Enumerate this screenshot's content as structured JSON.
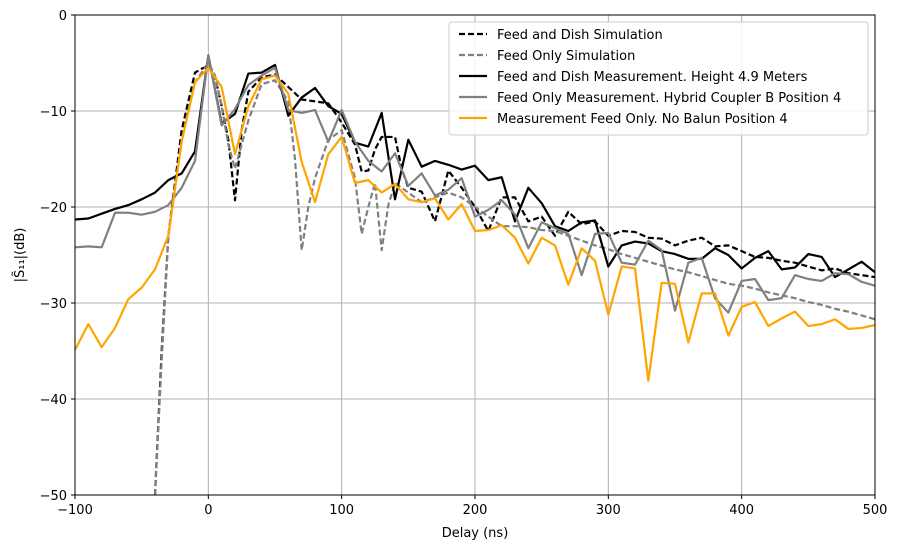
{
  "chart_data": {
    "type": "line",
    "xlabel": "Delay (ns)",
    "ylabel": "|S̃₁₁|(dB)",
    "xlim": [
      -100,
      500
    ],
    "ylim": [
      -50,
      0
    ],
    "xticks": [
      -100,
      0,
      100,
      200,
      300,
      400,
      500
    ],
    "xtick_labels": [
      "−100",
      "0",
      "100",
      "200",
      "300",
      "400",
      "500"
    ],
    "yticks": [
      0,
      -10,
      -20,
      -30,
      -40,
      -50
    ],
    "ytick_labels": [
      "0",
      "−10",
      "−20",
      "−30",
      "−40",
      "−50"
    ],
    "grid": true,
    "legend_position": "top-right",
    "series": [
      {
        "name": "Feed and Dish Simulation",
        "color": "#000000",
        "dash": "dashed",
        "points": [
          [
            -40,
            -50
          ],
          [
            -35,
            -35
          ],
          [
            -30,
            -23
          ],
          [
            -20,
            -12
          ],
          [
            -10,
            -6
          ],
          [
            -5,
            -5.6
          ],
          [
            0,
            -5.3
          ],
          [
            5,
            -6.4
          ],
          [
            10,
            -9.5
          ],
          [
            15,
            -13
          ],
          [
            20,
            -19.3
          ],
          [
            25,
            -12
          ],
          [
            30,
            -8
          ],
          [
            40,
            -6.5
          ],
          [
            50,
            -6.2
          ],
          [
            60,
            -7.5
          ],
          [
            70,
            -8.8
          ],
          [
            80,
            -9
          ],
          [
            90,
            -9.2
          ],
          [
            100,
            -11.2
          ],
          [
            110,
            -13.5
          ],
          [
            115,
            -16.3
          ],
          [
            120,
            -16.2
          ],
          [
            125,
            -14
          ],
          [
            130,
            -12.7
          ],
          [
            140,
            -12.7
          ],
          [
            145,
            -16
          ],
          [
            150,
            -18
          ],
          [
            160,
            -18.4
          ],
          [
            170,
            -21.5
          ],
          [
            180,
            -16.2
          ],
          [
            190,
            -18
          ],
          [
            200,
            -20
          ],
          [
            210,
            -22.5
          ],
          [
            220,
            -19
          ],
          [
            230,
            -19
          ],
          [
            240,
            -21.5
          ],
          [
            250,
            -21
          ],
          [
            260,
            -23
          ],
          [
            270,
            -20.5
          ],
          [
            280,
            -21.8
          ],
          [
            290,
            -21.5
          ],
          [
            300,
            -23
          ],
          [
            310,
            -22.5
          ],
          [
            320,
            -22.6
          ],
          [
            330,
            -23.2
          ],
          [
            340,
            -23.3
          ],
          [
            350,
            -24
          ],
          [
            360,
            -23.5
          ],
          [
            370,
            -23.2
          ],
          [
            380,
            -24.1
          ],
          [
            390,
            -24
          ],
          [
            400,
            -24.6
          ],
          [
            410,
            -25.2
          ],
          [
            420,
            -25.3
          ],
          [
            430,
            -25.6
          ],
          [
            440,
            -25.8
          ],
          [
            450,
            -26.2
          ],
          [
            460,
            -26.6
          ],
          [
            470,
            -26.4
          ],
          [
            480,
            -26.9
          ],
          [
            490,
            -27.1
          ],
          [
            500,
            -27.3
          ]
        ]
      },
      {
        "name": "Feed Only Simulation",
        "color": "#808080",
        "dash": "dashed",
        "points": [
          [
            -40,
            -50
          ],
          [
            -35,
            -36
          ],
          [
            -30,
            -23
          ],
          [
            -20,
            -13
          ],
          [
            -10,
            -7
          ],
          [
            -5,
            -6
          ],
          [
            0,
            -5
          ],
          [
            5,
            -6.3
          ],
          [
            10,
            -9.5
          ],
          [
            15,
            -13.5
          ],
          [
            20,
            -16
          ],
          [
            30,
            -11
          ],
          [
            40,
            -7.2
          ],
          [
            50,
            -6.8
          ],
          [
            60,
            -9
          ],
          [
            65,
            -15
          ],
          [
            70,
            -24.5
          ],
          [
            75,
            -20
          ],
          [
            80,
            -17
          ],
          [
            90,
            -13
          ],
          [
            100,
            -12
          ],
          [
            110,
            -17
          ],
          [
            115,
            -22.8
          ],
          [
            120,
            -20
          ],
          [
            125,
            -17.5
          ],
          [
            130,
            -24.5
          ],
          [
            135,
            -19.8
          ],
          [
            140,
            -17.5
          ],
          [
            150,
            -18.5
          ],
          [
            160,
            -19.5
          ],
          [
            170,
            -19
          ],
          [
            180,
            -18.5
          ],
          [
            190,
            -19
          ],
          [
            200,
            -20
          ],
          [
            210,
            -21
          ],
          [
            220,
            -22
          ],
          [
            230,
            -22
          ],
          [
            240,
            -22.1
          ],
          [
            250,
            -22.4
          ],
          [
            260,
            -22.5
          ],
          [
            270,
            -23
          ],
          [
            280,
            -23.5
          ],
          [
            290,
            -24
          ],
          [
            300,
            -24.4
          ],
          [
            310,
            -24.9
          ],
          [
            320,
            -25.3
          ],
          [
            330,
            -25.7
          ],
          [
            340,
            -26.1
          ],
          [
            350,
            -26.5
          ],
          [
            360,
            -26.8
          ],
          [
            370,
            -27.2
          ],
          [
            380,
            -27.6
          ],
          [
            390,
            -28
          ],
          [
            400,
            -28.2
          ],
          [
            410,
            -28.5
          ],
          [
            420,
            -28.9
          ],
          [
            430,
            -29.2
          ],
          [
            440,
            -29.5
          ],
          [
            450,
            -29.9
          ],
          [
            460,
            -30.2
          ],
          [
            470,
            -30.6
          ],
          [
            480,
            -30.9
          ],
          [
            490,
            -31.3
          ],
          [
            500,
            -31.7
          ]
        ]
      },
      {
        "name": "Feed and Dish Measurement. Height 4.9 Meters",
        "color": "#000000",
        "dash": "solid",
        "points": [
          [
            -100,
            -21.3
          ],
          [
            -90,
            -21.2
          ],
          [
            -80,
            -20.7
          ],
          [
            -70,
            -20.2
          ],
          [
            -60,
            -19.8
          ],
          [
            -50,
            -19.2
          ],
          [
            -40,
            -18.5
          ],
          [
            -30,
            -17.2
          ],
          [
            -20,
            -16.5
          ],
          [
            -10,
            -14.2
          ],
          [
            0,
            -4.2
          ],
          [
            10,
            -11.3
          ],
          [
            20,
            -10.3
          ],
          [
            30,
            -6.1
          ],
          [
            40,
            -6
          ],
          [
            50,
            -5.2
          ],
          [
            60,
            -10.5
          ],
          [
            70,
            -8.6
          ],
          [
            80,
            -7.6
          ],
          [
            90,
            -9.5
          ],
          [
            100,
            -10.3
          ],
          [
            110,
            -13.3
          ],
          [
            120,
            -13.7
          ],
          [
            130,
            -10.2
          ],
          [
            140,
            -19.2
          ],
          [
            150,
            -13
          ],
          [
            160,
            -15.8
          ],
          [
            170,
            -15.2
          ],
          [
            180,
            -15.6
          ],
          [
            190,
            -16.1
          ],
          [
            200,
            -15.7
          ],
          [
            210,
            -17.2
          ],
          [
            220,
            -16.9
          ],
          [
            230,
            -21.5
          ],
          [
            240,
            -18
          ],
          [
            250,
            -19.6
          ],
          [
            260,
            -22
          ],
          [
            270,
            -22.5
          ],
          [
            280,
            -21.6
          ],
          [
            290,
            -21.4
          ],
          [
            300,
            -26.2
          ],
          [
            310,
            -24
          ],
          [
            320,
            -23.6
          ],
          [
            330,
            -23.8
          ],
          [
            340,
            -24.6
          ],
          [
            350,
            -24.9
          ],
          [
            360,
            -25.4
          ],
          [
            370,
            -25.4
          ],
          [
            380,
            -24.3
          ],
          [
            390,
            -25
          ],
          [
            400,
            -26.4
          ],
          [
            410,
            -25.3
          ],
          [
            420,
            -24.6
          ],
          [
            430,
            -26.5
          ],
          [
            440,
            -26.3
          ],
          [
            450,
            -24.9
          ],
          [
            460,
            -25.2
          ],
          [
            470,
            -27.3
          ],
          [
            480,
            -26.5
          ],
          [
            490,
            -25.7
          ],
          [
            500,
            -26.8
          ]
        ]
      },
      {
        "name": "Feed Only Measurement. Hybrid Coupler B Position 4",
        "color": "#808080",
        "dash": "solid",
        "points": [
          [
            -100,
            -24.2
          ],
          [
            -90,
            -24.1
          ],
          [
            -80,
            -24.2
          ],
          [
            -70,
            -20.6
          ],
          [
            -60,
            -20.6
          ],
          [
            -50,
            -20.8
          ],
          [
            -40,
            -20.5
          ],
          [
            -30,
            -19.8
          ],
          [
            -20,
            -18
          ],
          [
            -10,
            -15.2
          ],
          [
            0,
            -4.2
          ],
          [
            10,
            -11.5
          ],
          [
            20,
            -9.8
          ],
          [
            30,
            -7.3
          ],
          [
            40,
            -6.3
          ],
          [
            50,
            -5.5
          ],
          [
            60,
            -9.9
          ],
          [
            70,
            -10.2
          ],
          [
            80,
            -9.9
          ],
          [
            90,
            -13.2
          ],
          [
            100,
            -9.9
          ],
          [
            110,
            -13.2
          ],
          [
            120,
            -15.2
          ],
          [
            130,
            -16.3
          ],
          [
            140,
            -14.4
          ],
          [
            150,
            -17.8
          ],
          [
            160,
            -16.5
          ],
          [
            170,
            -18.8
          ],
          [
            180,
            -18.2
          ],
          [
            190,
            -17
          ],
          [
            200,
            -21
          ],
          [
            210,
            -20.3
          ],
          [
            220,
            -19.3
          ],
          [
            230,
            -20.8
          ],
          [
            240,
            -24.3
          ],
          [
            250,
            -21.6
          ],
          [
            260,
            -22.2
          ],
          [
            270,
            -22.8
          ],
          [
            280,
            -27.1
          ],
          [
            290,
            -22.8
          ],
          [
            300,
            -22.7
          ],
          [
            310,
            -25.8
          ],
          [
            320,
            -26
          ],
          [
            330,
            -23.5
          ],
          [
            340,
            -24.5
          ],
          [
            350,
            -30.8
          ],
          [
            360,
            -25.8
          ],
          [
            370,
            -25.3
          ],
          [
            380,
            -29.5
          ],
          [
            390,
            -31
          ],
          [
            400,
            -27.7
          ],
          [
            410,
            -27.5
          ],
          [
            420,
            -29.7
          ],
          [
            430,
            -29.5
          ],
          [
            440,
            -27.1
          ],
          [
            450,
            -27.5
          ],
          [
            460,
            -27.7
          ],
          [
            470,
            -26.9
          ],
          [
            480,
            -27
          ],
          [
            490,
            -27.8
          ],
          [
            500,
            -28.2
          ]
        ]
      },
      {
        "name": "Measurement Feed Only. No Balun Position 4",
        "color": "#ffa500",
        "dash": "solid",
        "points": [
          [
            -100,
            -34.9
          ],
          [
            -90,
            -32.2
          ],
          [
            -80,
            -34.6
          ],
          [
            -70,
            -32.6
          ],
          [
            -60,
            -29.6
          ],
          [
            -50,
            -28.4
          ],
          [
            -40,
            -26.5
          ],
          [
            -30,
            -23
          ],
          [
            -20,
            -13.2
          ],
          [
            -10,
            -7
          ],
          [
            0,
            -5.5
          ],
          [
            10,
            -7.5
          ],
          [
            20,
            -14.5
          ],
          [
            30,
            -9.5
          ],
          [
            40,
            -6.7
          ],
          [
            50,
            -6.3
          ],
          [
            60,
            -8.2
          ],
          [
            70,
            -15.3
          ],
          [
            80,
            -19.5
          ],
          [
            90,
            -14.5
          ],
          [
            100,
            -12.7
          ],
          [
            110,
            -17.5
          ],
          [
            120,
            -17.2
          ],
          [
            130,
            -18.5
          ],
          [
            140,
            -17.6
          ],
          [
            150,
            -19.2
          ],
          [
            160,
            -19.5
          ],
          [
            170,
            -19.1
          ],
          [
            180,
            -21.3
          ],
          [
            190,
            -19.7
          ],
          [
            200,
            -22.5
          ],
          [
            210,
            -22.4
          ],
          [
            220,
            -21.9
          ],
          [
            230,
            -23.2
          ],
          [
            240,
            -25.9
          ],
          [
            250,
            -23.2
          ],
          [
            260,
            -24
          ],
          [
            270,
            -28.1
          ],
          [
            280,
            -24.3
          ],
          [
            290,
            -25.6
          ],
          [
            300,
            -31.2
          ],
          [
            310,
            -26.2
          ],
          [
            320,
            -26.4
          ],
          [
            330,
            -38.1
          ],
          [
            340,
            -27.9
          ],
          [
            350,
            -28
          ],
          [
            360,
            -34.1
          ],
          [
            370,
            -29
          ],
          [
            380,
            -29
          ],
          [
            390,
            -33.4
          ],
          [
            400,
            -30.4
          ],
          [
            410,
            -29.9
          ],
          [
            420,
            -32.4
          ],
          [
            430,
            -31.6
          ],
          [
            440,
            -30.9
          ],
          [
            450,
            -32.4
          ],
          [
            460,
            -32.2
          ],
          [
            470,
            -31.7
          ],
          [
            480,
            -32.7
          ],
          [
            490,
            -32.6
          ],
          [
            500,
            -32.3
          ]
        ]
      }
    ]
  }
}
